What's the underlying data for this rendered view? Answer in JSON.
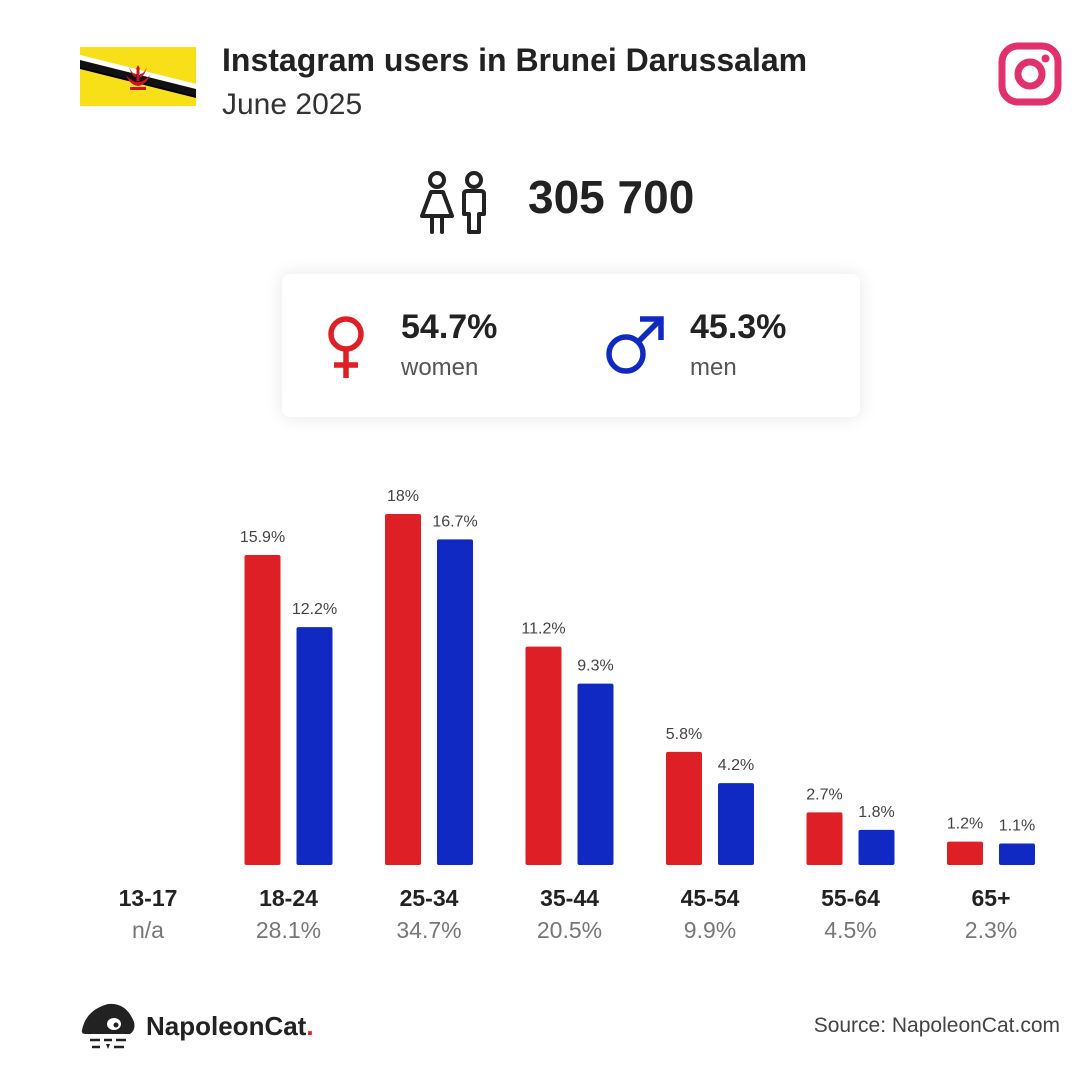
{
  "header": {
    "title": "Instagram users in Brunei Darussalam",
    "subtitle": "June 2025"
  },
  "icons": {
    "flag": "brunei-flag-icon",
    "platform": "instagram-icon",
    "users": "users-icon",
    "female": "female-symbol-icon",
    "male": "male-symbol-icon",
    "brand": "napoleoncat-logo-icon"
  },
  "total_users": "305 700",
  "gender": {
    "women": {
      "pct": "54.7%",
      "label": "women"
    },
    "men": {
      "pct": "45.3%",
      "label": "men"
    }
  },
  "colors": {
    "women": "#de1f26",
    "men": "#1029c2",
    "instagram": "#e1306c"
  },
  "chart_data": {
    "type": "bar",
    "categories": [
      "13-17",
      "18-24",
      "25-34",
      "35-44",
      "45-54",
      "55-64",
      "65+"
    ],
    "category_totals": [
      "n/a",
      "28.1%",
      "34.7%",
      "20.5%",
      "9.9%",
      "4.5%",
      "2.3%"
    ],
    "series": [
      {
        "key": "women",
        "values": [
          null,
          15.9,
          18,
          11.2,
          5.8,
          2.7,
          1.2
        ],
        "labels": [
          "",
          "15.9%",
          "18%",
          "11.2%",
          "5.8%",
          "2.7%",
          "1.2%"
        ]
      },
      {
        "key": "men",
        "values": [
          null,
          12.2,
          16.7,
          9.3,
          4.2,
          1.8,
          1.1
        ],
        "labels": [
          "",
          "12.2%",
          "16.7%",
          "9.3%",
          "4.2%",
          "1.8%",
          "1.1%"
        ]
      }
    ],
    "ylim": [
      0,
      18
    ],
    "grid": false,
    "legend": "none"
  },
  "footer": {
    "brand_name": "NapoleonCat",
    "brand_dot": ".",
    "source": "Source: NapoleonCat.com"
  }
}
